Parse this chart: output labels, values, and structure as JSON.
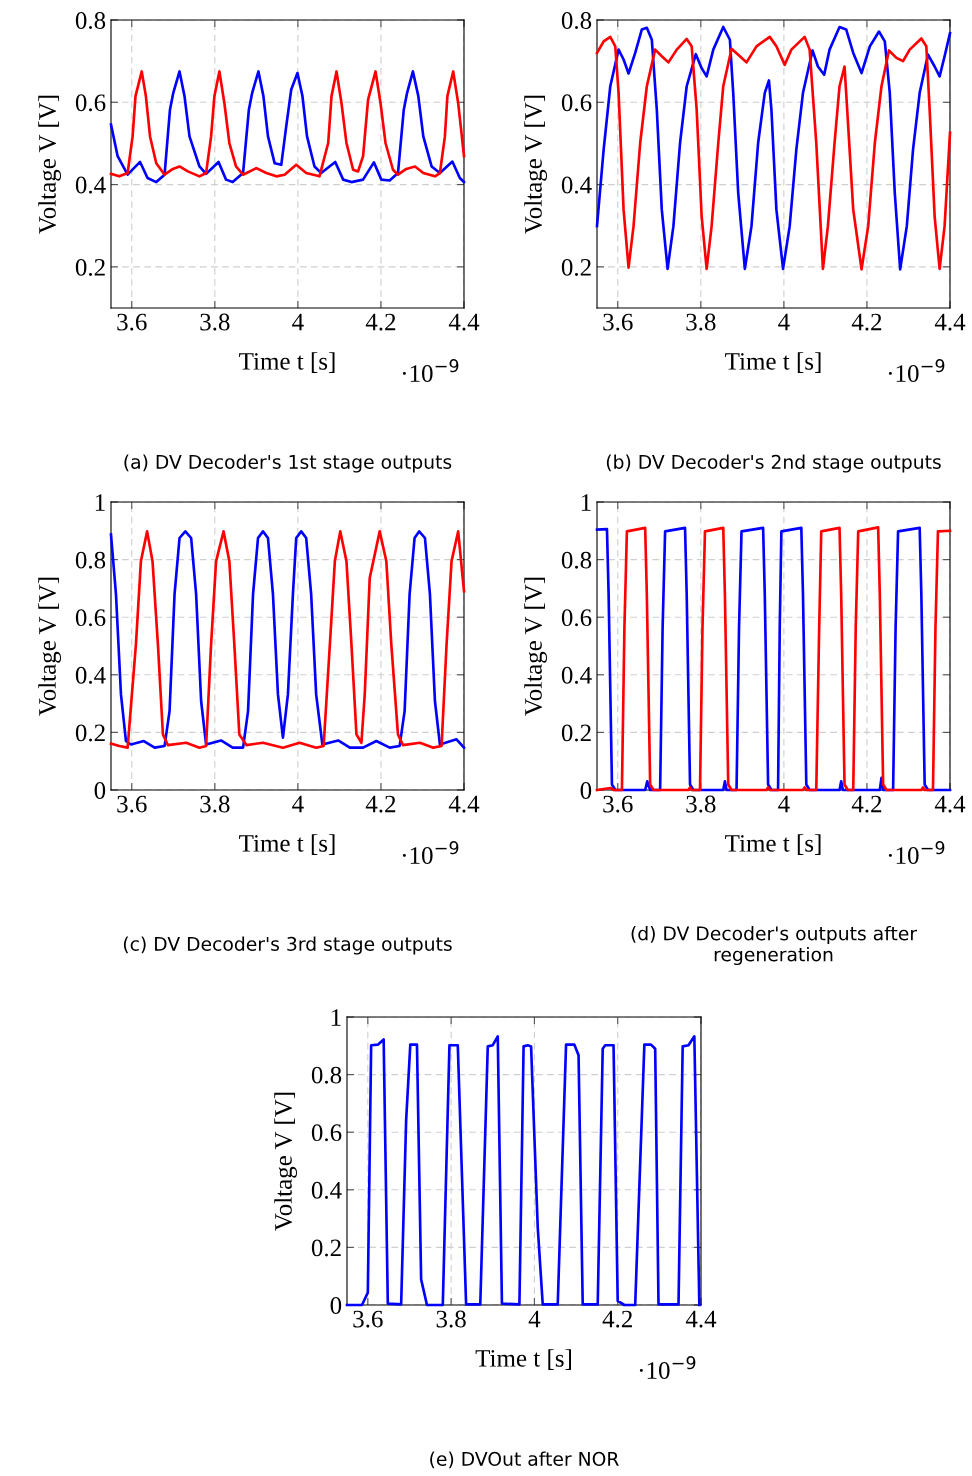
{
  "chart_data": [
    {
      "type": "line",
      "title": "(a) DV Decoder's 1st stage outputs",
      "xlabel": "Time t [s]",
      "ylabel": "Voltage V [V]",
      "annotations": [
        "·10$^{−9}$"
      ],
      "xlim": [
        3.55,
        4.4
      ],
      "ylim": [
        0.1,
        0.8
      ],
      "xticks": [
        3.6,
        3.8,
        4,
        4.2,
        4.4
      ],
      "yticks": [
        0.2,
        0.4,
        0.6,
        0.8
      ],
      "grid": true,
      "line_style": "solid",
      "marker": "none",
      "series": [
        {
          "color": "#0000ff",
          "x": [
            3.55,
            3.566,
            3.59,
            3.62,
            3.638,
            3.659,
            3.679,
            3.692,
            3.7,
            3.715,
            3.727,
            3.739,
            3.763,
            3.779,
            3.809,
            3.827,
            3.843,
            3.868,
            3.882,
            3.89,
            3.905,
            3.917,
            3.928,
            3.944,
            3.96,
            3.972,
            3.984,
            3.999,
            4.011,
            4.022,
            4.04,
            4.056,
            4.09,
            4.109,
            4.129,
            4.157,
            4.183,
            4.201,
            4.221,
            4.241,
            4.255,
            4.263,
            4.277,
            4.29,
            4.302,
            4.322,
            4.342,
            4.372,
            4.39,
            4.4
          ],
          "values": [
            0.546,
            0.469,
            0.424,
            0.455,
            0.416,
            0.406,
            0.424,
            0.582,
            0.623,
            0.675,
            0.615,
            0.517,
            0.444,
            0.426,
            0.455,
            0.412,
            0.406,
            0.428,
            0.582,
            0.623,
            0.675,
            0.615,
            0.517,
            0.452,
            0.448,
            0.542,
            0.631,
            0.671,
            0.615,
            0.517,
            0.444,
            0.428,
            0.455,
            0.412,
            0.406,
            0.412,
            0.454,
            0.412,
            0.41,
            0.428,
            0.582,
            0.623,
            0.675,
            0.615,
            0.517,
            0.444,
            0.428,
            0.456,
            0.416,
            0.406
          ]
        },
        {
          "color": "#ff0000",
          "x": [
            3.55,
            3.57,
            3.59,
            3.602,
            3.609,
            3.624,
            3.634,
            3.644,
            3.659,
            3.679,
            3.699,
            3.715,
            3.735,
            3.763,
            3.779,
            3.791,
            3.799,
            3.811,
            3.823,
            3.835,
            3.851,
            3.868,
            3.9,
            3.924,
            3.948,
            3.968,
            3.996,
            4.02,
            4.052,
            4.073,
            4.081,
            4.093,
            4.105,
            4.117,
            4.133,
            4.145,
            4.157,
            4.169,
            4.187,
            4.199,
            4.211,
            4.229,
            4.241,
            4.261,
            4.282,
            4.302,
            4.33,
            4.342,
            4.354,
            4.36,
            4.374,
            4.386,
            4.394,
            4.4
          ],
          "values": [
            0.426,
            0.42,
            0.428,
            0.517,
            0.615,
            0.675,
            0.615,
            0.517,
            0.452,
            0.424,
            0.438,
            0.444,
            0.432,
            0.42,
            0.428,
            0.517,
            0.615,
            0.675,
            0.598,
            0.501,
            0.444,
            0.424,
            0.44,
            0.428,
            0.42,
            0.424,
            0.448,
            0.428,
            0.42,
            0.501,
            0.615,
            0.675,
            0.598,
            0.501,
            0.436,
            0.432,
            0.469,
            0.606,
            0.675,
            0.598,
            0.501,
            0.436,
            0.424,
            0.438,
            0.444,
            0.428,
            0.42,
            0.428,
            0.517,
            0.615,
            0.675,
            0.598,
            0.525,
            0.469
          ]
        }
      ]
    },
    {
      "type": "line",
      "title": "(b) DV Decoder's 2nd stage outputs",
      "xlabel": "Time t [s]",
      "ylabel": "Voltage V [V]",
      "annotations": [
        "·10$^{−9}$"
      ],
      "xlim": [
        3.55,
        4.4
      ],
      "ylim": [
        0.1,
        0.8
      ],
      "xticks": [
        3.6,
        3.8,
        4,
        4.2,
        4.4
      ],
      "yticks": [
        0.2,
        0.4,
        0.6,
        0.8
      ],
      "grid": true,
      "line_style": "solid",
      "marker": "none",
      "series": [
        {
          "color": "#0000ff",
          "x": [
            3.55,
            3.566,
            3.582,
            3.602,
            3.614,
            3.626,
            3.642,
            3.658,
            3.67,
            3.682,
            3.694,
            3.706,
            3.72,
            3.734,
            3.75,
            3.766,
            3.788,
            3.802,
            3.814,
            3.83,
            3.854,
            3.87,
            3.878,
            3.89,
            3.906,
            3.922,
            3.938,
            3.954,
            3.964,
            3.97,
            3.982,
            3.998,
            4.014,
            4.03,
            4.046,
            4.069,
            4.082,
            4.097,
            4.11,
            4.134,
            4.15,
            4.167,
            4.187,
            4.207,
            4.229,
            4.243,
            4.255,
            4.267,
            4.28,
            4.296,
            4.311,
            4.327,
            4.347,
            4.363,
            4.375,
            4.387,
            4.4
          ],
          "values": [
            0.299,
            0.485,
            0.639,
            0.728,
            0.704,
            0.67,
            0.72,
            0.777,
            0.781,
            0.752,
            0.582,
            0.339,
            0.195,
            0.299,
            0.501,
            0.639,
            0.717,
            0.683,
            0.663,
            0.728,
            0.783,
            0.752,
            0.623,
            0.38,
            0.195,
            0.299,
            0.501,
            0.623,
            0.653,
            0.582,
            0.339,
            0.195,
            0.299,
            0.485,
            0.623,
            0.726,
            0.687,
            0.667,
            0.728,
            0.783,
            0.777,
            0.72,
            0.671,
            0.736,
            0.772,
            0.748,
            0.623,
            0.38,
            0.194,
            0.299,
            0.485,
            0.623,
            0.716,
            0.687,
            0.663,
            0.712,
            0.768
          ]
        },
        {
          "color": "#ff0000",
          "x": [
            3.55,
            3.566,
            3.582,
            3.594,
            3.602,
            3.614,
            3.626,
            3.638,
            3.654,
            3.67,
            3.69,
            3.706,
            3.722,
            3.742,
            3.766,
            3.778,
            3.79,
            3.802,
            3.814,
            3.826,
            3.842,
            3.854,
            3.874,
            3.894,
            3.91,
            3.934,
            3.966,
            3.982,
            4.002,
            4.018,
            4.05,
            4.062,
            4.078,
            4.094,
            4.106,
            4.122,
            4.134,
            4.146,
            4.15,
            4.167,
            4.187,
            4.203,
            4.219,
            4.235,
            4.253,
            4.271,
            4.287,
            4.303,
            4.331,
            4.343,
            4.351,
            4.363,
            4.375,
            4.387,
            4.4
          ],
          "values": [
            0.72,
            0.748,
            0.759,
            0.736,
            0.623,
            0.339,
            0.198,
            0.299,
            0.501,
            0.639,
            0.728,
            0.712,
            0.697,
            0.728,
            0.754,
            0.736,
            0.582,
            0.323,
            0.195,
            0.299,
            0.501,
            0.639,
            0.73,
            0.712,
            0.697,
            0.736,
            0.759,
            0.736,
            0.691,
            0.728,
            0.759,
            0.728,
            0.501,
            0.195,
            0.299,
            0.501,
            0.639,
            0.687,
            0.623,
            0.339,
            0.194,
            0.299,
            0.501,
            0.639,
            0.726,
            0.708,
            0.7,
            0.728,
            0.755,
            0.736,
            0.582,
            0.323,
            0.195,
            0.299,
            0.526
          ]
        }
      ]
    },
    {
      "type": "line",
      "title": "(c) DV Decoder's 3rd stage outputs",
      "xlabel": "Time t [s]",
      "ylabel": "Voltage V [V]",
      "annotations": [
        "·10$^{−9}$"
      ],
      "xlim": [
        3.55,
        4.4
      ],
      "ylim": [
        0,
        1
      ],
      "xticks": [
        3.6,
        3.8,
        4,
        4.2,
        4.4
      ],
      "yticks": [
        0,
        0.2,
        0.4,
        0.6,
        0.8,
        1
      ],
      "grid": true,
      "line_style": "solid",
      "marker": "none",
      "series": [
        {
          "color": "#0000ff",
          "x": [
            3.55,
            3.562,
            3.574,
            3.586,
            3.598,
            3.629,
            3.655,
            3.679,
            3.691,
            3.703,
            3.715,
            3.729,
            3.743,
            3.755,
            3.767,
            3.779,
            3.815,
            3.843,
            3.868,
            3.88,
            3.892,
            3.904,
            3.916,
            3.928,
            3.94,
            3.952,
            3.964,
            3.976,
            3.988,
            3.996,
            4.008,
            4.02,
            4.032,
            4.044,
            4.059,
            4.097,
            4.125,
            4.157,
            4.189,
            4.221,
            4.245,
            4.257,
            4.269,
            4.281,
            4.292,
            4.306,
            4.318,
            4.33,
            4.342,
            4.382,
            4.4
          ],
          "values": [
            0.887,
            0.679,
            0.332,
            0.17,
            0.158,
            0.17,
            0.147,
            0.153,
            0.274,
            0.679,
            0.875,
            0.898,
            0.875,
            0.679,
            0.309,
            0.158,
            0.172,
            0.147,
            0.147,
            0.274,
            0.679,
            0.875,
            0.898,
            0.875,
            0.679,
            0.332,
            0.182,
            0.332,
            0.679,
            0.875,
            0.898,
            0.875,
            0.679,
            0.332,
            0.158,
            0.172,
            0.147,
            0.147,
            0.17,
            0.147,
            0.153,
            0.274,
            0.679,
            0.875,
            0.898,
            0.875,
            0.679,
            0.309,
            0.158,
            0.176,
            0.147
          ]
        },
        {
          "color": "#ff0000",
          "x": [
            3.55,
            3.57,
            3.59,
            3.61,
            3.622,
            3.637,
            3.65,
            3.663,
            3.675,
            3.687,
            3.731,
            3.763,
            3.779,
            3.791,
            3.803,
            3.821,
            3.835,
            3.847,
            3.859,
            3.876,
            3.916,
            3.964,
            4.004,
            4.044,
            4.062,
            4.077,
            4.089,
            4.102,
            4.117,
            4.129,
            4.141,
            4.153,
            4.161,
            4.173,
            4.197,
            4.213,
            4.225,
            4.241,
            4.253,
            4.294,
            4.326,
            4.346,
            4.358,
            4.37,
            4.386,
            4.4
          ],
          "values": [
            0.161,
            0.153,
            0.147,
            0.505,
            0.794,
            0.898,
            0.794,
            0.505,
            0.193,
            0.156,
            0.164,
            0.147,
            0.153,
            0.505,
            0.794,
            0.898,
            0.794,
            0.505,
            0.193,
            0.156,
            0.164,
            0.147,
            0.164,
            0.147,
            0.153,
            0.505,
            0.794,
            0.898,
            0.794,
            0.505,
            0.193,
            0.164,
            0.332,
            0.736,
            0.898,
            0.794,
            0.505,
            0.193,
            0.156,
            0.164,
            0.147,
            0.153,
            0.505,
            0.794,
            0.898,
            0.69
          ]
        }
      ]
    },
    {
      "type": "line",
      "title": "(d) DV Decoder's outputs after regeneration",
      "xlabel": "Time t [s]",
      "ylabel": "Voltage V [V]",
      "annotations": [
        "·10$^{−9}$"
      ],
      "xlim": [
        3.55,
        4.4
      ],
      "ylim": [
        0,
        1
      ],
      "xticks": [
        3.6,
        3.8,
        4,
        4.2,
        4.4
      ],
      "yticks": [
        0,
        0.2,
        0.4,
        0.6,
        0.8,
        1
      ],
      "grid": true,
      "line_style": "solid",
      "marker": "none",
      "series": [
        {
          "color": "#0000ff",
          "x": [
            3.55,
            3.574,
            3.578,
            3.586,
            3.594,
            3.666,
            3.671,
            3.678,
            3.702,
            3.708,
            3.714,
            3.762,
            3.766,
            3.774,
            3.782,
            3.854,
            3.858,
            3.862,
            3.886,
            3.892,
            3.898,
            3.95,
            3.954,
            3.962,
            3.97,
            3.986,
            3.99,
            3.994,
            4.042,
            4.046,
            4.054,
            4.062,
            4.134,
            4.138,
            4.142,
            4.231,
            4.235,
            4.239,
            4.263,
            4.269,
            4.275,
            4.327,
            4.331,
            4.339,
            4.347,
            4.4
          ],
          "values": [
            0.904,
            0.906,
            0.678,
            0.019,
            0,
            0,
            0.03,
            0,
            0,
            0.563,
            0.898,
            0.91,
            0.678,
            0.019,
            0,
            0,
            0.03,
            0,
            0,
            0.563,
            0.898,
            0.91,
            0.678,
            0.019,
            0,
            0,
            0.563,
            0.898,
            0.91,
            0.678,
            0.019,
            0,
            0,
            0.03,
            0,
            0,
            0.042,
            0,
            0,
            0.563,
            0.898,
            0.91,
            0.678,
            0.019,
            0,
            0
          ]
        },
        {
          "color": "#ff0000",
          "x": [
            3.55,
            3.582,
            3.59,
            3.61,
            3.616,
            3.622,
            3.666,
            3.67,
            3.678,
            3.686,
            3.77,
            3.774,
            3.778,
            3.798,
            3.804,
            3.81,
            3.854,
            3.858,
            3.866,
            3.874,
            3.958,
            3.962,
            3.966,
            4.046,
            4.05,
            4.054,
            4.078,
            4.085,
            4.09,
            4.134,
            4.138,
            4.146,
            4.154,
            4.167,
            4.173,
            4.179,
            4.227,
            4.231,
            4.239,
            4.247,
            4.331,
            4.335,
            4.339,
            4.359,
            4.365,
            4.371,
            4.4
          ],
          "values": [
            0,
            0.007,
            0,
            0,
            0.563,
            0.898,
            0.91,
            0.678,
            0.019,
            0,
            0,
            0.009,
            0,
            0,
            0.563,
            0.898,
            0.91,
            0.678,
            0.019,
            0,
            0,
            0.009,
            0,
            0,
            0.009,
            0,
            0,
            0.563,
            0.898,
            0.91,
            0.678,
            0.019,
            0,
            0,
            0.563,
            0.898,
            0.912,
            0.678,
            0.019,
            0,
            0,
            0.009,
            0,
            0,
            0.563,
            0.898,
            0.9
          ]
        }
      ]
    },
    {
      "type": "line",
      "title": "(e) DVOut after NOR",
      "xlabel": "Time t [s]",
      "ylabel": "Voltage V [V]",
      "annotations": [
        "·10$^{−9}$"
      ],
      "xlim": [
        3.55,
        4.4
      ],
      "ylim": [
        0,
        1
      ],
      "xticks": [
        3.6,
        3.8,
        4,
        4.2,
        4.4
      ],
      "yticks": [
        0,
        0.2,
        0.4,
        0.6,
        0.8,
        1
      ],
      "grid": true,
      "line_style": "solid",
      "marker": "none",
      "series": [
        {
          "color": "#0000ff",
          "x": [
            3.55,
            3.586,
            3.6,
            3.608,
            3.624,
            3.638,
            3.648,
            3.68,
            3.692,
            3.702,
            3.718,
            3.728,
            3.742,
            3.78,
            3.796,
            3.816,
            3.836,
            3.87,
            3.888,
            3.9,
            3.912,
            3.922,
            3.964,
            3.974,
            3.984,
            3.992,
            4.008,
            4.02,
            4.056,
            4.076,
            4.096,
            4.106,
            4.116,
            4.152,
            4.164,
            4.17,
            4.19,
            4.2,
            4.216,
            4.242,
            4.264,
            4.28,
            4.29,
            4.298,
            4.346,
            4.356,
            4.37,
            4.384,
            4.396
          ],
          "values": [
            0,
            0,
            0.043,
            0.902,
            0.904,
            0.922,
            0.005,
            0.002,
            0.641,
            0.904,
            0.904,
            0.089,
            0,
            0,
            0.902,
            0.902,
            0.002,
            0.002,
            0.898,
            0.902,
            0.933,
            0.005,
            0.002,
            0.898,
            0.902,
            0.898,
            0.269,
            0.002,
            0.002,
            0.904,
            0.904,
            0.867,
            0.002,
            0.002,
            0.89,
            0.902,
            0.902,
            0.014,
            0,
            0,
            0.904,
            0.904,
            0.89,
            0.002,
            0.002,
            0.898,
            0.902,
            0.933,
            0
          ]
        }
      ]
    }
  ]
}
